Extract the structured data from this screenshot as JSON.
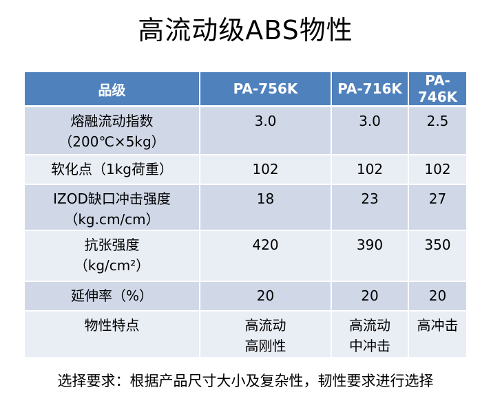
{
  "title": "高流动级ABS物性",
  "table": {
    "headers": [
      "品级",
      "PA-756K",
      "PA-716K",
      "PA-746K"
    ],
    "rows": [
      {
        "property": [
          "熔融流动指数",
          "（200℃×5kg）"
        ],
        "values": [
          [
            "3.0"
          ],
          [
            "3.0"
          ],
          [
            "2.5"
          ]
        ]
      },
      {
        "property": [
          "软化点（1kg荷重）"
        ],
        "values": [
          [
            "102"
          ],
          [
            "102"
          ],
          [
            "102"
          ]
        ]
      },
      {
        "property": [
          "IZOD缺口冲击强度",
          "（kg.cm/cm）"
        ],
        "values": [
          [
            "18"
          ],
          [
            "23"
          ],
          [
            "27"
          ]
        ]
      },
      {
        "property": [
          "抗张强度",
          "（kg/cm²）"
        ],
        "values": [
          [
            "420"
          ],
          [
            "390"
          ],
          [
            "350"
          ]
        ]
      },
      {
        "property": [
          "延伸率（%）"
        ],
        "values": [
          [
            "20"
          ],
          [
            "20"
          ],
          [
            "20"
          ]
        ]
      },
      {
        "property": [
          "物性特点"
        ],
        "values": [
          [
            "高流动",
            "高刚性"
          ],
          [
            "高流动",
            "中冲击"
          ],
          [
            "高冲击"
          ]
        ]
      }
    ]
  },
  "footer": "选择要求：根据产品尺寸大小及复杂性，韧性要求进行选择",
  "colors": {
    "header_bg": "#4f81bd",
    "row_odd_bg": "#d0d8e8",
    "row_even_bg": "#e9edf4"
  }
}
